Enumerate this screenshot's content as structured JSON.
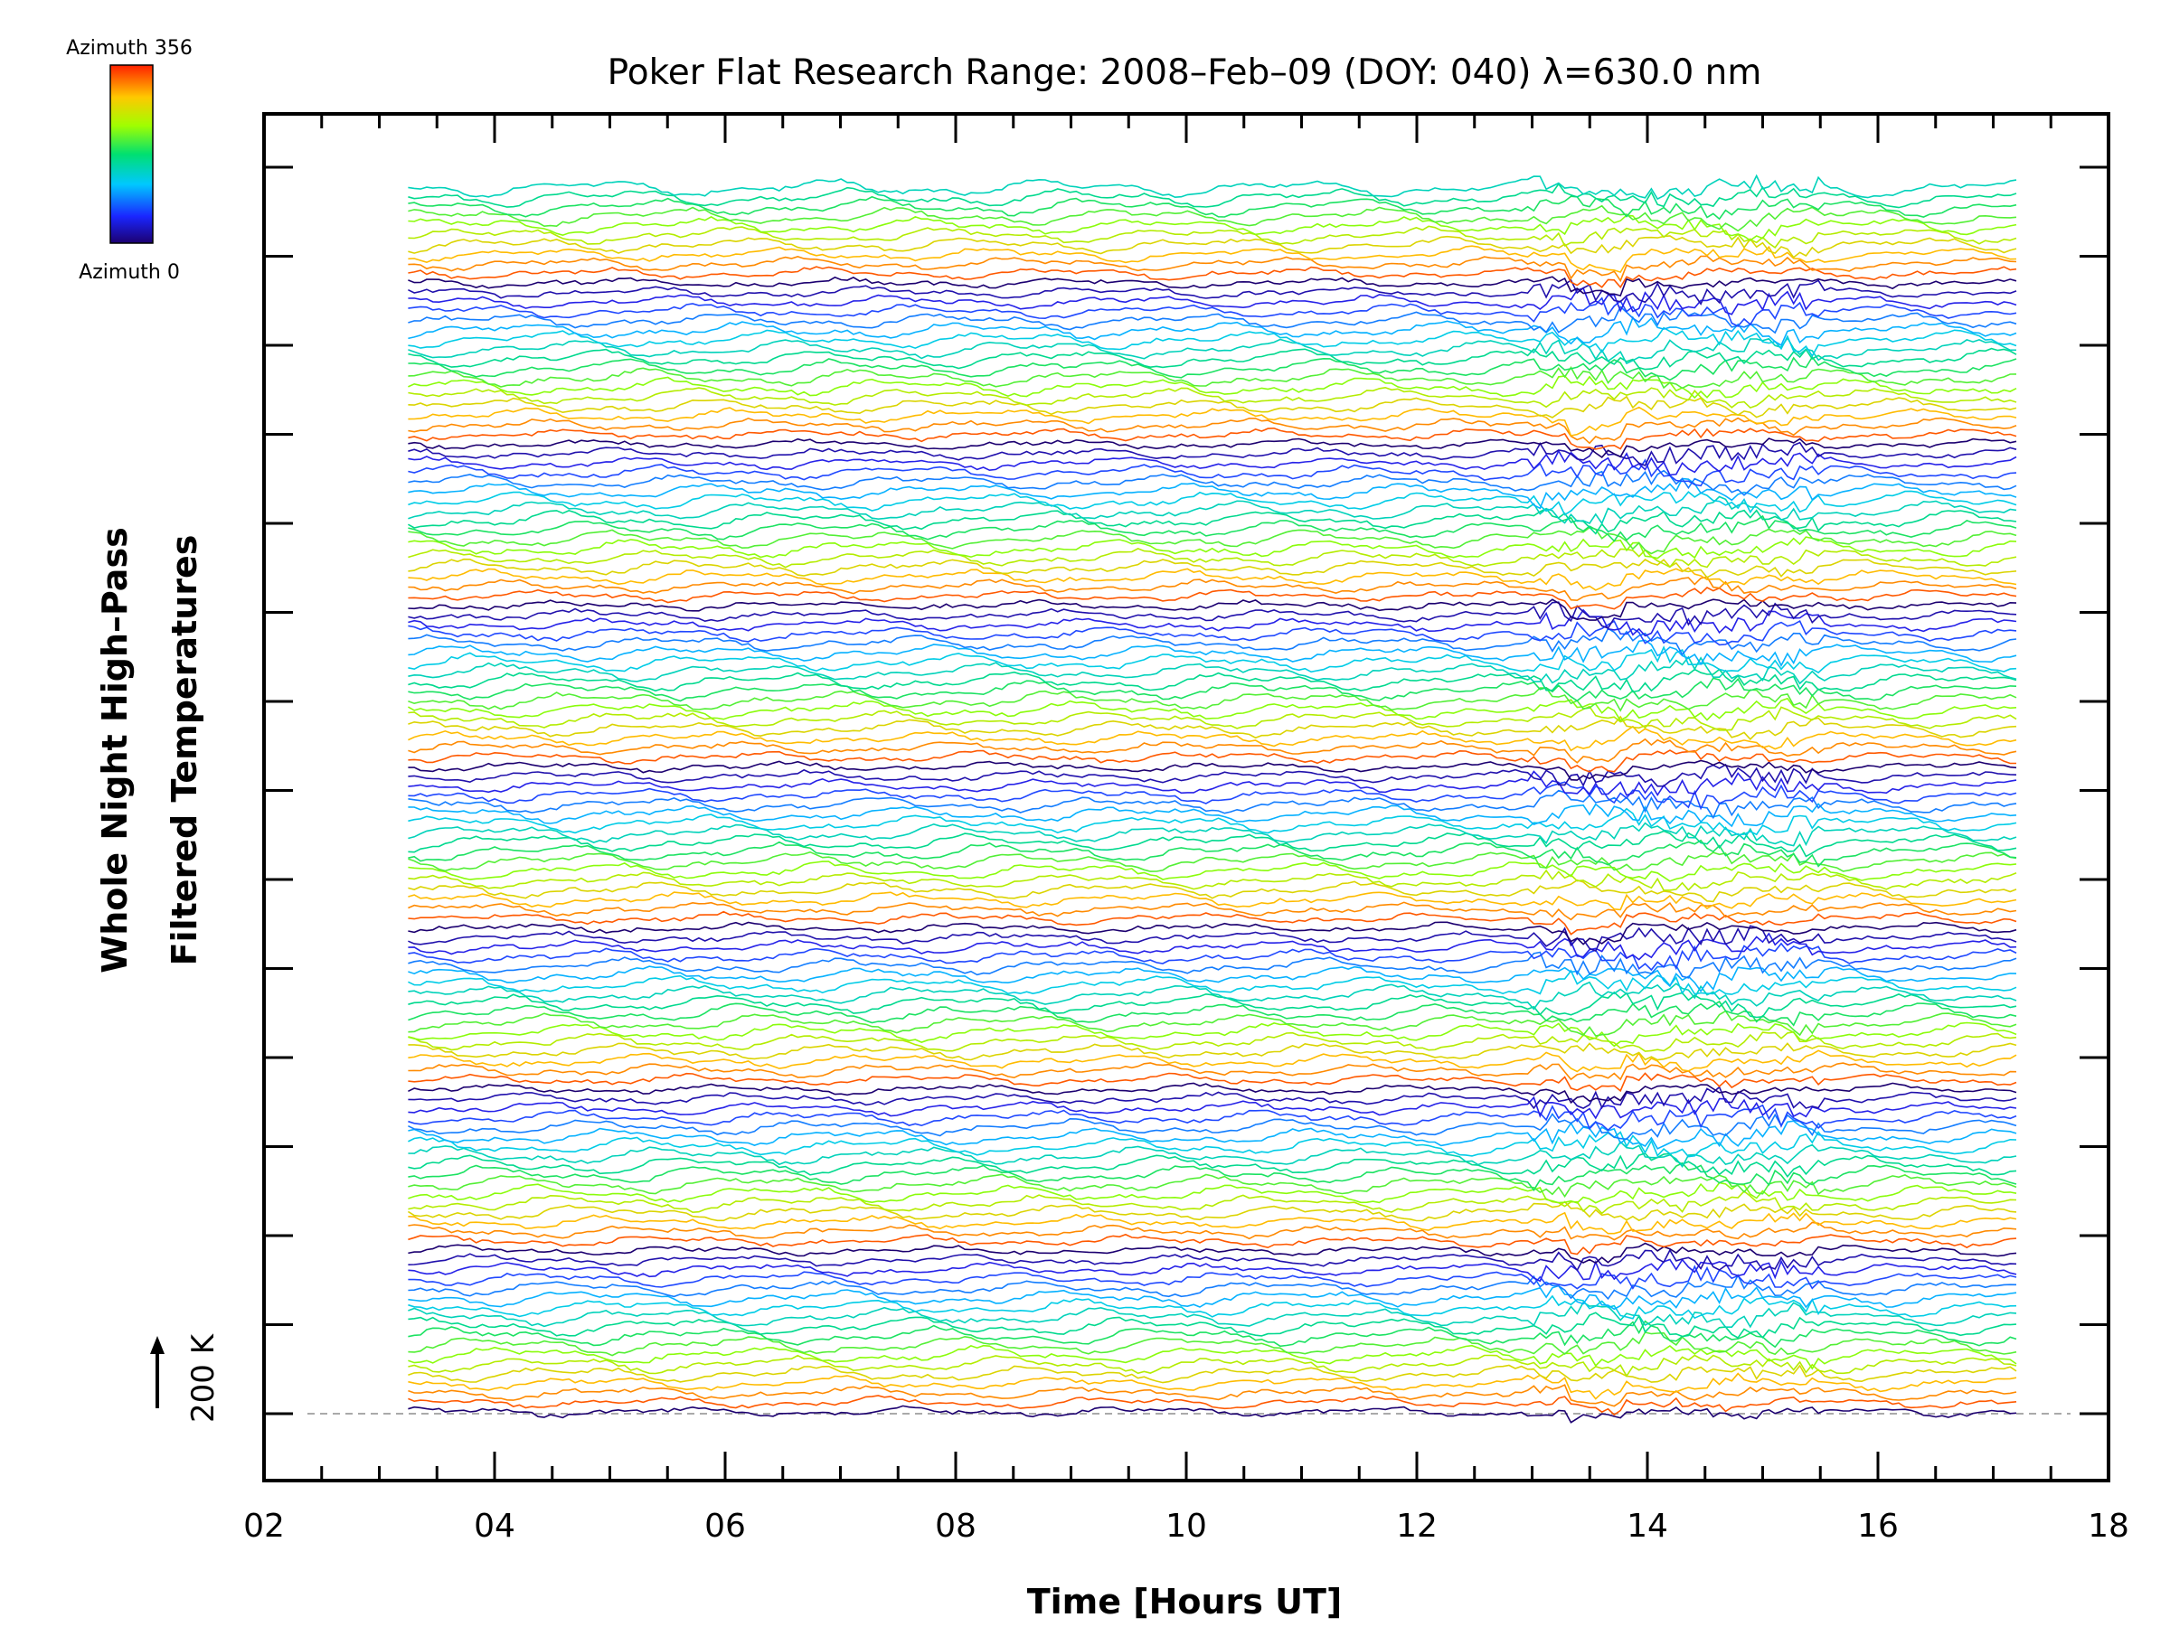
{
  "chart_data": {
    "type": "line",
    "title": "Poker Flat Research Range: 2008–Feb–09 (DOY: 040) λ=630.0 nm",
    "xlabel": "Time [Hours UT]",
    "ylabel_line1": "Whole Night High–Pass",
    "ylabel_line2": "Filtered Temperatures",
    "xlim": [
      2,
      18
    ],
    "xticks": [
      2,
      4,
      6,
      8,
      10,
      12,
      14,
      16,
      18
    ],
    "xtick_labels": [
      "02",
      "04",
      "06",
      "08",
      "10",
      "12",
      "14",
      "16",
      "18"
    ],
    "data_time_range": [
      3.25,
      17.2
    ],
    "n_traces": 130,
    "colorbar": {
      "top_label": "Azimuth 356",
      "bottom_label": "Azimuth 0",
      "colormap": "rainbow",
      "range": [
        0,
        356
      ]
    },
    "scale_bar_label": "200 K",
    "baseline_style": "dashed-gray",
    "frame_color": "#000000"
  }
}
